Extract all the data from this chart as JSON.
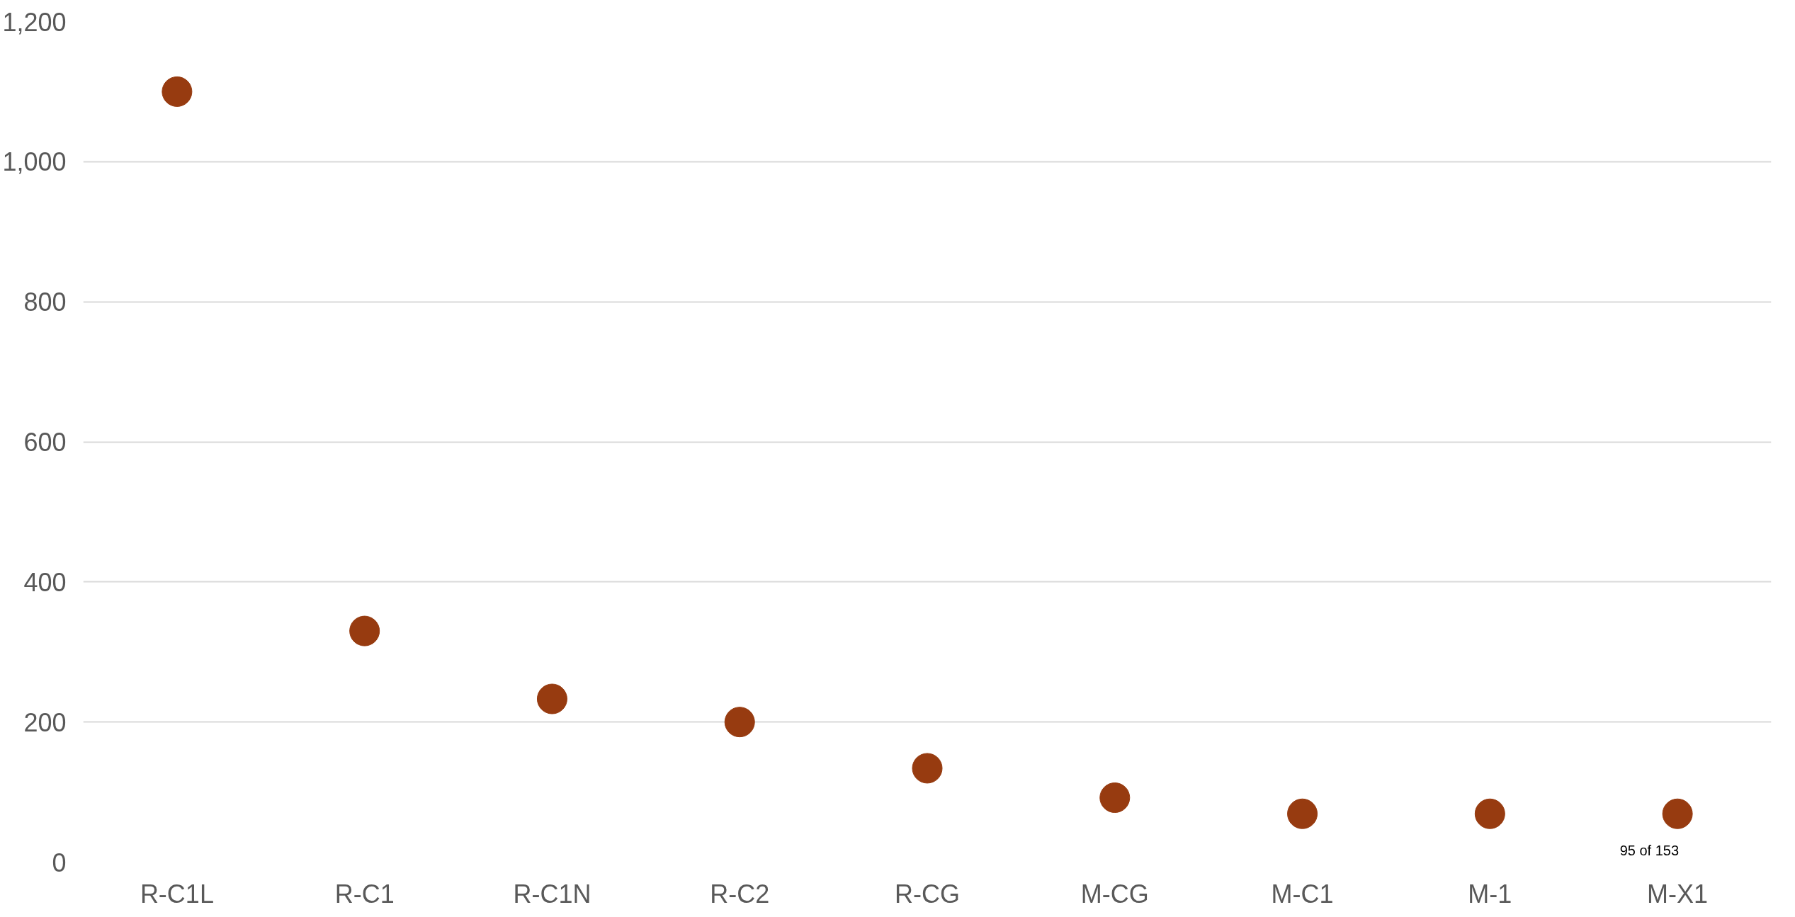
{
  "chart_data": {
    "type": "scatter",
    "categories": [
      "R-C1L",
      "R-C1",
      "R-C1N",
      "R-C2",
      "R-CG",
      "M-CG",
      "M-C1",
      "M-1",
      "M-X1"
    ],
    "values": [
      1100,
      330,
      233,
      200,
      134,
      92,
      69,
      69,
      69
    ],
    "color": "#973b10",
    "ylim": [
      0,
      1200
    ],
    "yticks": [
      {
        "value": 0,
        "label": "0"
      },
      {
        "value": 200,
        "label": "200"
      },
      {
        "value": 400,
        "label": "400"
      },
      {
        "value": 600,
        "label": "600"
      },
      {
        "value": 800,
        "label": "800"
      },
      {
        "value": 1000,
        "label": "1,000"
      },
      {
        "value": 1200,
        "label": "1,200"
      }
    ],
    "grid": "y",
    "marker": "circle",
    "annotations": [
      "95 of 153"
    ]
  }
}
